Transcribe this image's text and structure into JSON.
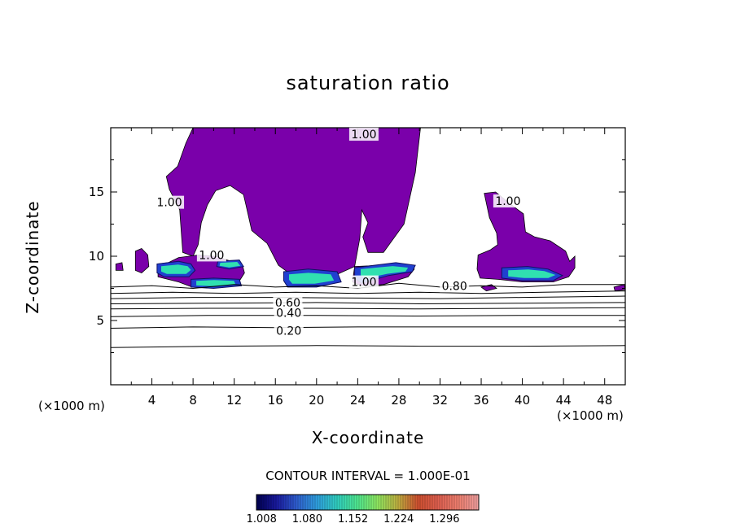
{
  "chart_data": {
    "type": "contour",
    "title": "saturation ratio",
    "xlabel": "X-coordinate",
    "ylabel": "Z-coordinate",
    "x_unit": "(×1000 m)",
    "z_unit": "(×1000 m)",
    "xlim": [
      0,
      50
    ],
    "ylim": [
      0,
      20
    ],
    "x_ticks": [
      4,
      8,
      12,
      16,
      20,
      24,
      28,
      32,
      36,
      40,
      44,
      48
    ],
    "y_ticks": [
      5,
      10,
      15
    ],
    "contour_interval_text": "CONTOUR INTERVAL = 1.000E-01",
    "contour_labels": [
      {
        "text": "1.00",
        "x": 24.6,
        "z": 19.5
      },
      {
        "text": "1.00",
        "x": 5.7,
        "z": 14.2
      },
      {
        "text": "1.00",
        "x": 9.8,
        "z": 10.1
      },
      {
        "text": "1.00",
        "x": 38.6,
        "z": 14.3
      },
      {
        "text": "1.00",
        "x": 24.6,
        "z": 8.0
      },
      {
        "text": "0.80",
        "x": 33.4,
        "z": 7.7
      },
      {
        "text": "0.60",
        "x": 17.2,
        "z": 6.4
      },
      {
        "text": "0.40",
        "x": 17.3,
        "z": 5.6
      },
      {
        "text": "0.20",
        "x": 17.3,
        "z": 4.2
      }
    ],
    "lines": [
      {
        "level": "0.20",
        "points": [
          [
            0,
            4.4
          ],
          [
            8,
            4.5
          ],
          [
            16,
            4.45
          ],
          [
            24,
            4.5
          ],
          [
            32,
            4.5
          ],
          [
            40,
            4.5
          ],
          [
            50,
            4.5
          ]
        ]
      },
      {
        "level": "0.30",
        "points": [
          [
            0,
            5.3
          ],
          [
            10,
            5.4
          ],
          [
            20,
            5.4
          ],
          [
            30,
            5.35
          ],
          [
            40,
            5.4
          ],
          [
            50,
            5.4
          ]
        ]
      },
      {
        "level": "0.40",
        "points": [
          [
            0,
            5.9
          ],
          [
            10,
            5.95
          ],
          [
            20,
            5.95
          ],
          [
            30,
            5.9
          ],
          [
            40,
            5.95
          ],
          [
            50,
            6.0
          ]
        ]
      },
      {
        "level": "0.50",
        "points": [
          [
            0,
            6.3
          ],
          [
            10,
            6.35
          ],
          [
            20,
            6.4
          ],
          [
            30,
            6.3
          ],
          [
            40,
            6.35
          ],
          [
            50,
            6.4
          ]
        ]
      },
      {
        "level": "0.60",
        "points": [
          [
            0,
            6.7
          ],
          [
            8,
            6.8
          ],
          [
            16,
            6.8
          ],
          [
            24,
            6.75
          ],
          [
            32,
            6.7
          ],
          [
            40,
            6.8
          ],
          [
            50,
            6.9
          ]
        ]
      },
      {
        "level": "0.70",
        "points": [
          [
            0,
            7.1
          ],
          [
            6,
            7.2
          ],
          [
            12,
            7.1
          ],
          [
            18,
            7.2
          ],
          [
            24,
            7.1
          ],
          [
            30,
            7.2
          ],
          [
            36,
            7.1
          ],
          [
            42,
            7.2
          ],
          [
            50,
            7.3
          ]
        ]
      },
      {
        "level": "0.80",
        "points": [
          [
            0,
            7.6
          ],
          [
            4,
            7.7
          ],
          [
            8,
            7.5
          ],
          [
            12,
            7.8
          ],
          [
            16,
            7.6
          ],
          [
            20,
            7.7
          ],
          [
            24,
            7.5
          ],
          [
            28,
            7.9
          ],
          [
            32,
            7.6
          ],
          [
            36,
            7.7
          ],
          [
            40,
            7.6
          ],
          [
            44,
            7.8
          ],
          [
            50,
            7.8
          ]
        ]
      },
      {
        "level": "0.10",
        "points": [
          [
            0,
            2.9
          ],
          [
            10,
            3.0
          ],
          [
            20,
            3.05
          ],
          [
            30,
            3.0
          ],
          [
            40,
            3.0
          ],
          [
            50,
            3.05
          ]
        ]
      }
    ],
    "regions": [
      {
        "points": [
          [
            8,
            20
          ],
          [
            30.1,
            20
          ],
          [
            29.6,
            16.5
          ],
          [
            28.5,
            12.5
          ],
          [
            26.5,
            10.3
          ],
          [
            25,
            10.3
          ],
          [
            24.5,
            11.5
          ],
          [
            25,
            12.6
          ],
          [
            24.4,
            13.6
          ],
          [
            24.2,
            11.4
          ],
          [
            23.7,
            9.2
          ],
          [
            22.3,
            8.7
          ],
          [
            21.5,
            8.4
          ],
          [
            19.2,
            8.4
          ],
          [
            17.5,
            8.6
          ],
          [
            16.8,
            9.0
          ],
          [
            16.3,
            9.3
          ],
          [
            15.2,
            11.0
          ],
          [
            13.7,
            12.0
          ],
          [
            13.2,
            13.8
          ],
          [
            12.9,
            14.8
          ],
          [
            11.6,
            15.5
          ],
          [
            10.2,
            15.1
          ],
          [
            9.4,
            14.0
          ],
          [
            8.8,
            12.6
          ],
          [
            8.5,
            10.9
          ],
          [
            8.0,
            10.0
          ],
          [
            7.0,
            10.3
          ],
          [
            6.7,
            13.6
          ],
          [
            5.7,
            15.2
          ],
          [
            5.4,
            16.2
          ],
          [
            6.5,
            17.0
          ],
          [
            7.3,
            18.8
          ]
        ]
      },
      {
        "points": [
          [
            4.6,
            9.4
          ],
          [
            5.6,
            9.5
          ],
          [
            6.6,
            9.9
          ],
          [
            8.6,
            10.1
          ],
          [
            10.2,
            10.0
          ],
          [
            11.7,
            9.6
          ],
          [
            12.8,
            9.3
          ],
          [
            13.0,
            8.7
          ],
          [
            12.2,
            7.7
          ],
          [
            9.7,
            7.6
          ],
          [
            7.9,
            7.6
          ],
          [
            6.6,
            8.0
          ],
          [
            4.6,
            8.4
          ]
        ]
      },
      {
        "points": [
          [
            2.4,
            10.4
          ],
          [
            3.0,
            10.6
          ],
          [
            3.6,
            10.1
          ],
          [
            3.7,
            9.2
          ],
          [
            3.0,
            8.7
          ],
          [
            2.4,
            8.9
          ]
        ]
      },
      {
        "points": [
          [
            0.5,
            9.4
          ],
          [
            1.1,
            9.5
          ],
          [
            1.2,
            8.9
          ],
          [
            0.5,
            8.9
          ]
        ]
      },
      {
        "points": [
          [
            23.7,
            9.2
          ],
          [
            26.2,
            9.3
          ],
          [
            28.6,
            9.4
          ],
          [
            29.5,
            9.0
          ],
          [
            28.9,
            8.4
          ],
          [
            26.5,
            7.8
          ],
          [
            24.3,
            7.7
          ],
          [
            23.5,
            8.0
          ]
        ]
      },
      {
        "points": [
          [
            36.3,
            14.9
          ],
          [
            37.4,
            15.0
          ],
          [
            38.6,
            14.2
          ],
          [
            40.1,
            13.3
          ],
          [
            40.3,
            11.9
          ],
          [
            41.2,
            11.5
          ],
          [
            42.7,
            11.2
          ],
          [
            44.2,
            10.4
          ],
          [
            44.6,
            9.6
          ],
          [
            45.1,
            10.0
          ],
          [
            45.1,
            9.1
          ],
          [
            44.5,
            8.4
          ],
          [
            43.0,
            8.0
          ],
          [
            40.0,
            8.0
          ],
          [
            37.6,
            8.2
          ],
          [
            35.9,
            8.3
          ],
          [
            35.6,
            9.0
          ],
          [
            35.7,
            10.1
          ],
          [
            36.9,
            10.5
          ],
          [
            37.6,
            10.9
          ],
          [
            37.5,
            11.8
          ],
          [
            36.8,
            13.0
          ]
        ]
      },
      {
        "points": [
          [
            36.0,
            7.6
          ],
          [
            37.0,
            7.8
          ],
          [
            37.5,
            7.5
          ],
          [
            36.5,
            7.3
          ]
        ]
      },
      {
        "points": [
          [
            48.9,
            7.6
          ],
          [
            49.9,
            7.8
          ],
          [
            50,
            7.4
          ],
          [
            49.0,
            7.3
          ]
        ]
      }
    ],
    "supersat_patches": [
      {
        "points": [
          [
            4.5,
            9.4
          ],
          [
            6.6,
            9.6
          ],
          [
            7.8,
            9.4
          ],
          [
            8.2,
            8.9
          ],
          [
            7.6,
            8.4
          ],
          [
            5.2,
            8.4
          ],
          [
            4.5,
            8.7
          ]
        ]
      },
      {
        "points": [
          [
            7.8,
            8.2
          ],
          [
            10,
            8.3
          ],
          [
            12.5,
            8.2
          ],
          [
            12.7,
            7.7
          ],
          [
            10,
            7.5
          ],
          [
            7.8,
            7.6
          ]
        ]
      },
      {
        "points": [
          [
            10.4,
            9.6
          ],
          [
            12.5,
            9.7
          ],
          [
            12.9,
            9.2
          ],
          [
            11.5,
            9.0
          ],
          [
            10.3,
            9.2
          ]
        ]
      },
      {
        "points": [
          [
            16.8,
            8.8
          ],
          [
            19.2,
            9.0
          ],
          [
            22.0,
            8.8
          ],
          [
            22.4,
            8.0
          ],
          [
            20.0,
            7.6
          ],
          [
            17.2,
            7.6
          ],
          [
            16.8,
            8.1
          ]
        ]
      },
      {
        "points": [
          [
            23.7,
            9.1
          ],
          [
            25.6,
            9.3
          ],
          [
            27.7,
            9.5
          ],
          [
            29.6,
            9.3
          ],
          [
            29.3,
            8.8
          ],
          [
            27.0,
            8.5
          ],
          [
            24.4,
            7.9
          ],
          [
            23.7,
            8.3
          ]
        ]
      },
      {
        "points": [
          [
            38.0,
            9.1
          ],
          [
            40.5,
            9.2
          ],
          [
            42.5,
            9.0
          ],
          [
            43.9,
            8.5
          ],
          [
            43.0,
            8.1
          ],
          [
            40.0,
            8.1
          ],
          [
            38.0,
            8.3
          ]
        ]
      }
    ],
    "colorbar": {
      "min": 1.0,
      "max": 1.35,
      "tick_values": [
        1.008,
        1.08,
        1.152,
        1.224,
        1.296
      ],
      "tick_labels": [
        "1.008",
        "1.080",
        "1.152",
        "1.224",
        "1.296"
      ],
      "colors": [
        "#000050",
        "#1a1aa0",
        "#2f5fd0",
        "#2fa0e0",
        "#30d0c0",
        "#4fe890",
        "#90e860",
        "#c0b040",
        "#d05030",
        "#e06050",
        "#f08070",
        "#f0a0a0"
      ]
    },
    "fill_color": "#7a00aa"
  }
}
